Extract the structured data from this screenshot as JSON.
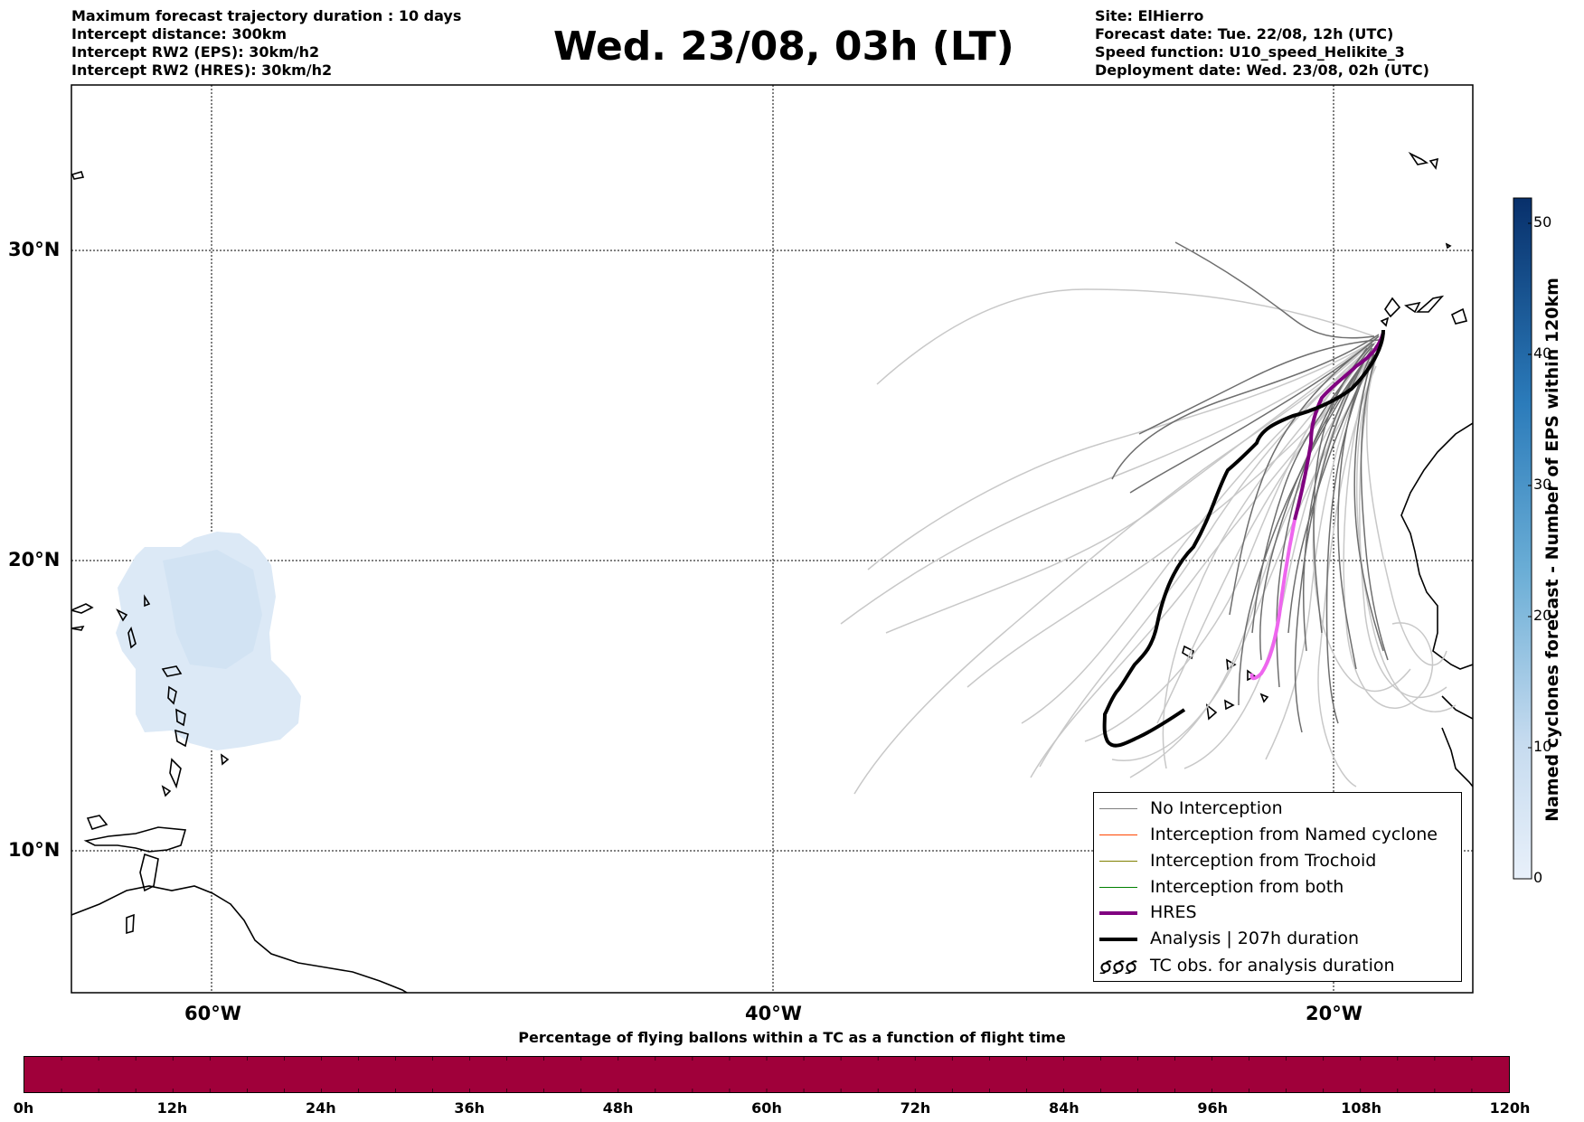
{
  "title": "Wed. 23/08, 03h (LT)",
  "header_left": [
    "Maximum forecast trajectory duration : 10 days",
    "Intercept distance: 300km",
    "Intercept RW2 (EPS):  30km/h2",
    "Intercept RW2 (HRES): 30km/h2"
  ],
  "header_right": [
    "Site: ElHierro",
    "Forecast date: Tue. 22/08, 12h (UTC)",
    "Speed function: U10_speed_Helikite_3",
    "Deployment date: Wed. 23/08, 02h (UTC)"
  ],
  "map": {
    "lat_labels": [
      "30°N",
      "20°N",
      "10°N"
    ],
    "lon_labels": [
      "60°W",
      "40°W",
      "20°W"
    ],
    "lon_range": [
      -65,
      -15
    ],
    "lat_range": [
      5.3,
      34.6
    ],
    "grid": "dotted"
  },
  "legend": {
    "placement": "bottom-right",
    "items": [
      {
        "label": "No Interception",
        "color": "#7f7f7f",
        "kind": "line-thin"
      },
      {
        "label": "Interception from Named cyclone",
        "color": "#ff4500",
        "kind": "line-thin"
      },
      {
        "label": "Interception from Trochoid",
        "color": "#808000",
        "kind": "line-thin"
      },
      {
        "label": "Interception from both",
        "color": "#008000",
        "kind": "line-thin"
      },
      {
        "label": "HRES",
        "color": "#800080",
        "kind": "line-thick"
      },
      {
        "label": "Analysis | 207h duration",
        "color": "#000000",
        "kind": "line-thick"
      },
      {
        "label": "TC obs. for analysis duration",
        "color": "#000000",
        "kind": "cyclone-symbols"
      }
    ]
  },
  "colorbar": {
    "label": "Named cyclones forecast - Number of EPS within 120km",
    "ticks": [
      "0",
      "10",
      "20",
      "30",
      "40",
      "50"
    ],
    "range": [
      0,
      52
    ],
    "color_low": "#e6eef8",
    "color_high": "#08306b"
  },
  "flight_bar": {
    "title": "Percentage of flying ballons within a TC as a function of flight time",
    "color": "#a0003a",
    "ticks": [
      "0h",
      "12h",
      "24h",
      "36h",
      "48h",
      "60h",
      "72h",
      "84h",
      "96h",
      "108h",
      "120h"
    ]
  }
}
